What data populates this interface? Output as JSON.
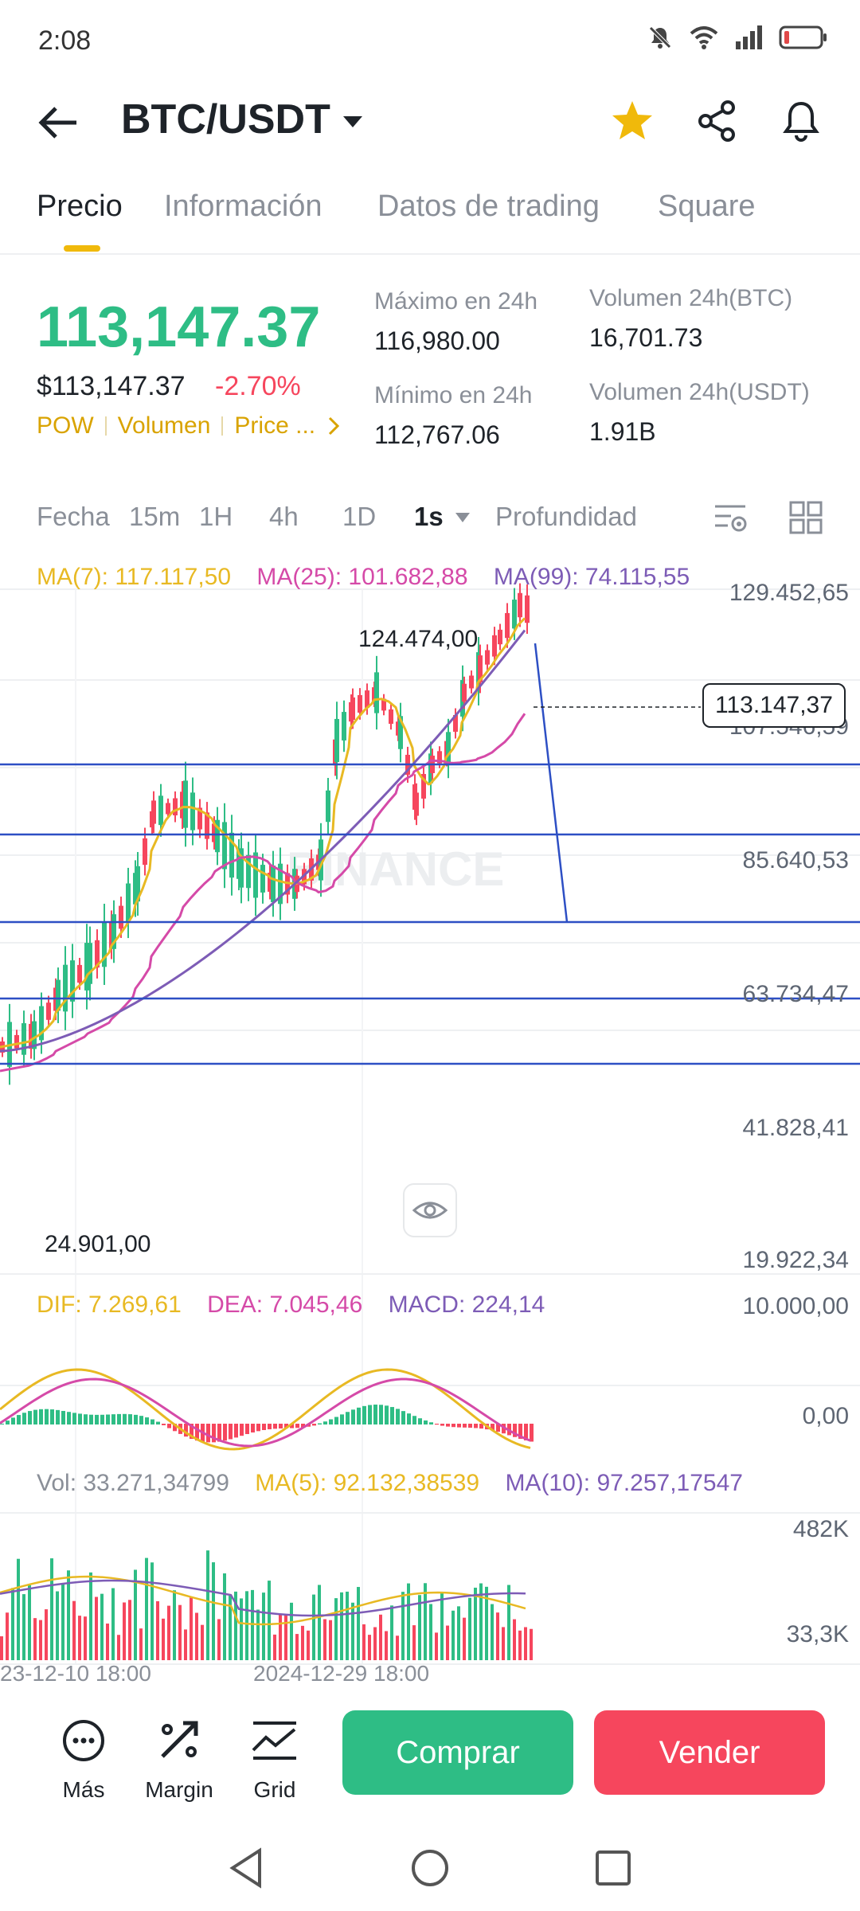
{
  "status": {
    "time": "2:08"
  },
  "header": {
    "pair": "BTC/USDT"
  },
  "tabs": [
    "Precio",
    "Información",
    "Datos de trading",
    "Square"
  ],
  "price": {
    "last": "113,147.37",
    "usd": "$113,147.37",
    "change": "-2.70%",
    "tags": [
      "POW",
      "Volumen",
      "Price ..."
    ]
  },
  "stats": {
    "high_label": "Máximo en 24h",
    "high_value": "116,980.00",
    "low_label": "Mínimo en 24h",
    "low_value": "112,767.06",
    "vol_btc_label": "Volumen 24h(BTC)",
    "vol_btc_value": "16,701.73",
    "vol_usdt_label": "Volumen 24h(USDT)",
    "vol_usdt_value": "1.91B"
  },
  "intervals": [
    "Fecha",
    "15m",
    "1H",
    "4h",
    "1D",
    "1s",
    "Profundidad"
  ],
  "chart": {
    "ma7": "MA(7): 117.117,50",
    "ma25": "MA(25): 101.682,88",
    "ma99": "MA(99): 74.115,55",
    "price_axis": [
      "129.452,65",
      "107.546,59",
      "85.640,53",
      "63.734,47",
      "41.828,41",
      "19.922,34"
    ],
    "high_marker": "124.474,00",
    "low_marker": "24.901,00",
    "current_marker": "113.147,37",
    "watermark": "BINANCE",
    "macd_dif": "DIF: 7.269,61",
    "macd_dea": "DEA: 7.045,46",
    "macd_val": "MACD: 224,14",
    "macd_axis": [
      "10.000,00",
      "0,00"
    ],
    "vol_label": "Vol: 33.271,34799",
    "vol_ma5": "MA(5): 92.132,38539",
    "vol_ma10": "MA(10): 97.257,17547",
    "vol_axis": [
      "482K",
      "33,3K"
    ],
    "date_labels": [
      "23-12-10 18:00",
      "2024-12-29 18:00"
    ]
  },
  "toolbar": {
    "more": "Más",
    "margin": "Margin",
    "grid": "Grid",
    "buy": "Comprar",
    "sell": "Vender"
  },
  "colors": {
    "green": "#2ebd85",
    "red": "#f6465d",
    "yellow": "#f0b90b",
    "ma7": "#e8b923",
    "ma25": "#d54aa8",
    "ma99": "#7d5cb6",
    "drawn_lines": "#2d4fc4"
  }
}
